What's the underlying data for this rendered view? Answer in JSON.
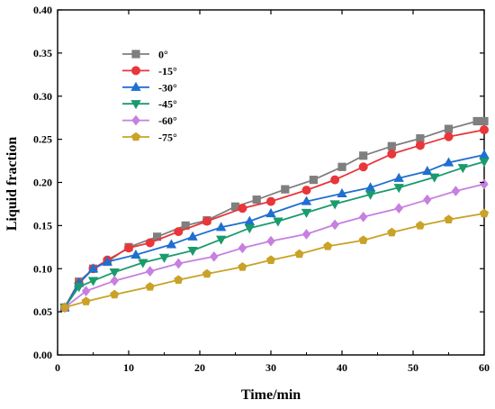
{
  "chart_data": {
    "type": "line",
    "xlabel": "Time/min",
    "ylabel": "Liquid fraction",
    "xlim": [
      0,
      60
    ],
    "ylim": [
      0,
      0.4
    ],
    "xticks": [
      0,
      10,
      20,
      30,
      40,
      50,
      60
    ],
    "xtick_labels": [
      "0",
      "10",
      "20",
      "30",
      "40",
      "50",
      "60"
    ],
    "yticks": [
      0,
      0.05,
      0.1,
      0.15,
      0.2,
      0.25,
      0.3,
      0.35,
      0.4
    ],
    "ytick_labels": [
      "0.00",
      "0.05",
      "0.10",
      "0.15",
      "0.20",
      "0.25",
      "0.30",
      "0.35",
      "0.40"
    ],
    "grid": false,
    "legend_position": "upper-left",
    "series": [
      {
        "name": "0°",
        "color": "#7f7f7f",
        "marker": "square",
        "x": [
          1,
          3,
          5,
          7,
          10,
          14,
          18,
          21,
          25,
          28,
          32,
          36,
          40,
          43,
          47,
          51,
          55,
          59,
          60
        ],
        "y": [
          0.055,
          0.085,
          0.1,
          0.108,
          0.125,
          0.137,
          0.15,
          0.156,
          0.172,
          0.18,
          0.192,
          0.203,
          0.218,
          0.231,
          0.242,
          0.251,
          0.262,
          0.271,
          0.271
        ]
      },
      {
        "name": "-15°",
        "color": "#e8363a",
        "marker": "circle",
        "x": [
          1,
          3,
          5,
          7,
          10,
          13,
          17,
          21,
          26,
          30,
          35,
          39,
          43,
          47,
          51,
          55,
          60
        ],
        "y": [
          0.055,
          0.083,
          0.1,
          0.11,
          0.124,
          0.13,
          0.143,
          0.155,
          0.17,
          0.178,
          0.191,
          0.203,
          0.218,
          0.233,
          0.243,
          0.253,
          0.261
        ]
      },
      {
        "name": "-30°",
        "color": "#1f6fd0",
        "marker": "triangle-up",
        "x": [
          1,
          3,
          5,
          7,
          11,
          16,
          19,
          23,
          27,
          30,
          35,
          40,
          44,
          48,
          52,
          55,
          60
        ],
        "y": [
          0.055,
          0.083,
          0.1,
          0.108,
          0.116,
          0.128,
          0.137,
          0.148,
          0.155,
          0.164,
          0.178,
          0.187,
          0.194,
          0.205,
          0.213,
          0.223,
          0.232
        ]
      },
      {
        "name": "-45°",
        "color": "#1a9b6c",
        "marker": "triangle-down",
        "x": [
          1,
          3,
          5,
          8,
          12,
          15,
          19,
          23,
          27,
          31,
          35,
          39,
          44,
          48,
          53,
          57,
          60
        ],
        "y": [
          0.055,
          0.079,
          0.086,
          0.096,
          0.107,
          0.113,
          0.121,
          0.134,
          0.147,
          0.155,
          0.165,
          0.175,
          0.186,
          0.194,
          0.206,
          0.217,
          0.224
        ]
      },
      {
        "name": "-60°",
        "color": "#c77fe0",
        "marker": "diamond",
        "x": [
          1,
          4,
          8,
          13,
          17,
          22,
          26,
          30,
          35,
          39,
          43,
          48,
          52,
          56,
          60
        ],
        "y": [
          0.055,
          0.074,
          0.086,
          0.097,
          0.106,
          0.114,
          0.124,
          0.132,
          0.14,
          0.151,
          0.16,
          0.17,
          0.18,
          0.19,
          0.198
        ]
      },
      {
        "name": "-75°",
        "color": "#c9a227",
        "marker": "pentagon",
        "x": [
          1,
          4,
          8,
          13,
          17,
          21,
          26,
          30,
          34,
          38,
          43,
          47,
          51,
          55,
          60
        ],
        "y": [
          0.055,
          0.062,
          0.07,
          0.079,
          0.087,
          0.094,
          0.102,
          0.11,
          0.117,
          0.126,
          0.133,
          0.142,
          0.15,
          0.157,
          0.164
        ]
      }
    ]
  }
}
